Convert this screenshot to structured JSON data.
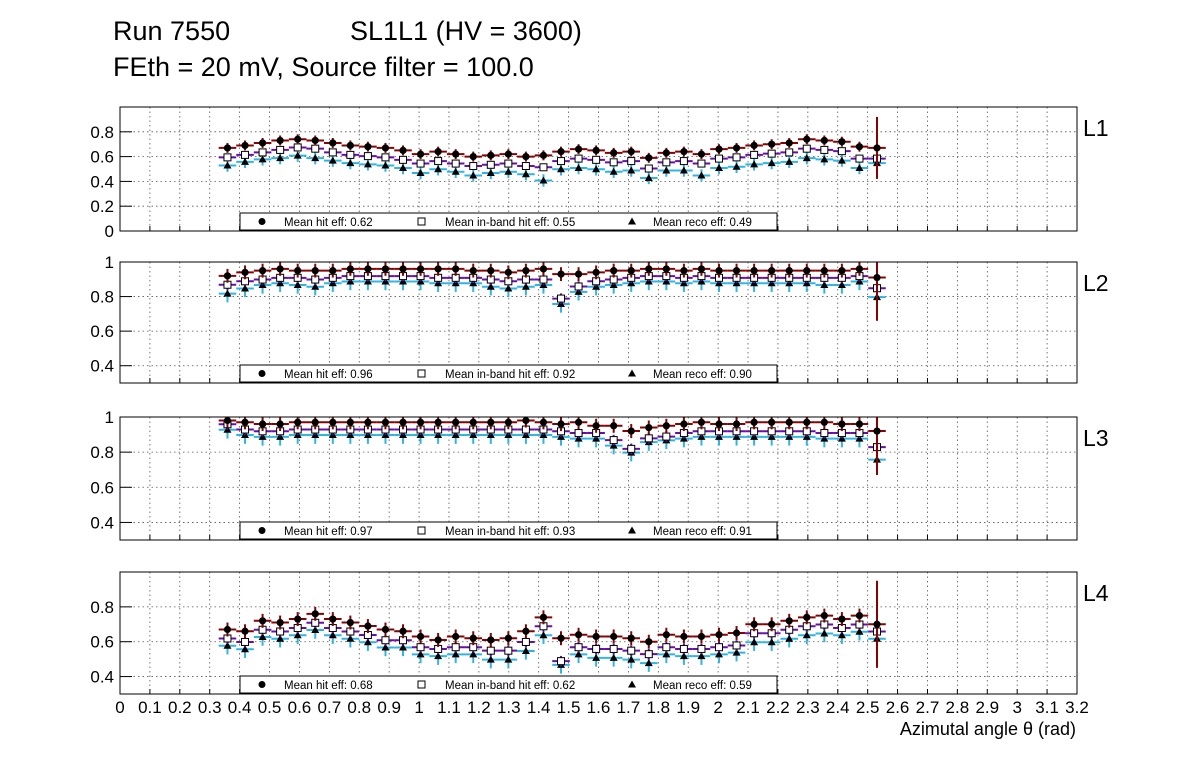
{
  "header": {
    "run": "Run 7550",
    "chamber": "SL1L1 (HV = 3600)",
    "settings": "FEth = 20 mV, Source filter = 100.0"
  },
  "colors": {
    "hit": "#8b0000",
    "inband": "#6a0dad",
    "reco": "#2bb6e6",
    "grid": "#555555"
  },
  "chart_data": {
    "type": "scatter",
    "xlabel": "Azimutal angle θ (rad)",
    "xlim": [
      0,
      3.2
    ],
    "x_ticks": [
      0,
      0.1,
      0.2,
      0.3,
      0.4,
      0.5,
      0.6,
      0.7,
      0.8,
      0.9,
      1,
      1.1,
      1.2,
      1.3,
      1.4,
      1.5,
      1.6,
      1.7,
      1.8,
      1.9,
      2,
      2.1,
      2.2,
      2.3,
      2.4,
      2.5,
      2.6,
      2.7,
      2.8,
      2.9,
      3,
      3.1,
      3.2
    ],
    "x_tick_labels": [
      "0",
      "0.1",
      "0.2",
      "0.3",
      "0.4",
      "0.5",
      "0.6",
      "0.7",
      "0.8",
      "0.9",
      "1",
      "1.1",
      "1.2",
      "1.3",
      "1.4",
      "1.5",
      "1.6",
      "1.7",
      "1.8",
      "1.9",
      "2",
      "2.1",
      "2.2",
      "2.3",
      "2.4",
      "2.5",
      "2.6",
      "2.7",
      "2.8",
      "2.9",
      "3",
      "3.1",
      "3.2"
    ],
    "x_bin_start": 0.33,
    "x_bin_width": 0.0587,
    "legend_labels": {
      "hit": "Mean hit  eff:",
      "inband": "Mean in-band hit eff:",
      "reco": "Mean reco eff:"
    },
    "panels": [
      {
        "name": "L1",
        "ylim": [
          0,
          1.0
        ],
        "y_ticks": [
          0,
          0.2,
          0.4,
          0.6,
          0.8
        ],
        "y_tick_labels": [
          "0",
          "0.2",
          "0.4",
          "0.6",
          "0.8"
        ],
        "means": {
          "hit": "0.62",
          "inband": "0.55",
          "reco": "0.49"
        },
        "series": [
          {
            "name": "Mean hit eff",
            "values": [
              0.67,
              0.69,
              0.71,
              0.73,
              0.74,
              0.73,
              0.71,
              0.69,
              0.68,
              0.67,
              0.65,
              0.62,
              0.64,
              0.62,
              0.6,
              0.61,
              0.62,
              0.6,
              0.61,
              0.64,
              0.66,
              0.65,
              0.63,
              0.64,
              0.59,
              0.63,
              0.64,
              0.62,
              0.66,
              0.67,
              0.69,
              0.7,
              0.71,
              0.74,
              0.73,
              0.72,
              0.68,
              0.67
            ]
          },
          {
            "name": "Mean in-band hit eff",
            "values": [
              0.61,
              0.63,
              0.65,
              0.67,
              0.69,
              0.68,
              0.65,
              0.63,
              0.62,
              0.61,
              0.59,
              0.56,
              0.58,
              0.56,
              0.54,
              0.55,
              0.56,
              0.54,
              0.53,
              0.58,
              0.6,
              0.59,
              0.57,
              0.58,
              0.52,
              0.57,
              0.58,
              0.56,
              0.6,
              0.61,
              0.63,
              0.64,
              0.65,
              0.68,
              0.67,
              0.66,
              0.6,
              0.6
            ]
          },
          {
            "name": "Mean reco eff",
            "values": [
              0.56,
              0.59,
              0.61,
              0.62,
              0.64,
              0.62,
              0.6,
              0.58,
              0.57,
              0.56,
              0.54,
              0.5,
              0.53,
              0.51,
              0.48,
              0.5,
              0.51,
              0.49,
              0.44,
              0.53,
              0.54,
              0.53,
              0.51,
              0.52,
              0.46,
              0.52,
              0.52,
              0.48,
              0.54,
              0.55,
              0.57,
              0.58,
              0.59,
              0.62,
              0.61,
              0.6,
              0.54,
              0.58
            ]
          }
        ]
      },
      {
        "name": "L2",
        "ylim": [
          0.3,
          1.0
        ],
        "y_ticks": [
          0.4,
          0.6,
          0.8,
          1.0
        ],
        "y_tick_labels": [
          "0.4",
          "0.6",
          "0.8",
          "1"
        ],
        "means": {
          "hit": "0.96",
          "inband": "0.92",
          "reco": "0.90"
        },
        "series": [
          {
            "name": "Mean hit eff",
            "values": [
              0.92,
              0.94,
              0.95,
              0.96,
              0.95,
              0.95,
              0.95,
              0.96,
              0.96,
              0.96,
              0.96,
              0.96,
              0.96,
              0.96,
              0.95,
              0.95,
              0.94,
              0.95,
              0.96,
              0.93,
              0.93,
              0.94,
              0.95,
              0.95,
              0.96,
              0.96,
              0.95,
              0.96,
              0.95,
              0.95,
              0.95,
              0.95,
              0.95,
              0.95,
              0.95,
              0.95,
              0.96,
              0.91
            ]
          },
          {
            "name": "Mean in-band hit eff",
            "values": [
              0.88,
              0.9,
              0.91,
              0.92,
              0.92,
              0.91,
              0.92,
              0.93,
              0.93,
              0.93,
              0.93,
              0.93,
              0.92,
              0.92,
              0.92,
              0.91,
              0.9,
              0.91,
              0.91,
              0.8,
              0.87,
              0.9,
              0.91,
              0.92,
              0.93,
              0.93,
              0.92,
              0.93,
              0.92,
              0.92,
              0.92,
              0.92,
              0.92,
              0.92,
              0.92,
              0.92,
              0.93,
              0.86
            ]
          },
          {
            "name": "Mean reco eff",
            "values": [
              0.84,
              0.87,
              0.89,
              0.9,
              0.89,
              0.88,
              0.9,
              0.91,
              0.91,
              0.91,
              0.91,
              0.91,
              0.9,
              0.9,
              0.9,
              0.88,
              0.87,
              0.88,
              0.89,
              0.78,
              0.85,
              0.88,
              0.89,
              0.9,
              0.91,
              0.91,
              0.9,
              0.91,
              0.9,
              0.9,
              0.9,
              0.9,
              0.9,
              0.9,
              0.89,
              0.89,
              0.91,
              0.82
            ]
          }
        ]
      },
      {
        "name": "L3",
        "ylim": [
          0.3,
          1.0
        ],
        "y_ticks": [
          0.4,
          0.6,
          0.8,
          1.0
        ],
        "y_tick_labels": [
          "0.4",
          "0.6",
          "0.8",
          "1"
        ],
        "means": {
          "hit": "0.97",
          "inband": "0.93",
          "reco": "0.91"
        },
        "series": [
          {
            "name": "Mean hit eff",
            "values": [
              0.98,
              0.97,
              0.96,
              0.96,
              0.97,
              0.97,
              0.97,
              0.97,
              0.97,
              0.97,
              0.97,
              0.97,
              0.97,
              0.97,
              0.97,
              0.97,
              0.97,
              0.98,
              0.97,
              0.96,
              0.97,
              0.95,
              0.95,
              0.92,
              0.94,
              0.95,
              0.96,
              0.97,
              0.96,
              0.96,
              0.97,
              0.97,
              0.97,
              0.97,
              0.97,
              0.96,
              0.96,
              0.92
            ]
          },
          {
            "name": "Mean in-band hit eff",
            "values": [
              0.97,
              0.94,
              0.93,
              0.93,
              0.94,
              0.94,
              0.94,
              0.94,
              0.94,
              0.94,
              0.94,
              0.94,
              0.94,
              0.94,
              0.94,
              0.94,
              0.94,
              0.94,
              0.94,
              0.93,
              0.92,
              0.92,
              0.88,
              0.83,
              0.89,
              0.9,
              0.92,
              0.93,
              0.93,
              0.93,
              0.93,
              0.93,
              0.93,
              0.93,
              0.92,
              0.92,
              0.92,
              0.84
            ]
          },
          {
            "name": "Mean reco eff",
            "values": [
              0.95,
              0.92,
              0.91,
              0.91,
              0.92,
              0.92,
              0.92,
              0.92,
              0.92,
              0.92,
              0.92,
              0.92,
              0.92,
              0.92,
              0.92,
              0.92,
              0.92,
              0.92,
              0.92,
              0.91,
              0.9,
              0.9,
              0.86,
              0.82,
              0.88,
              0.89,
              0.9,
              0.91,
              0.91,
              0.91,
              0.91,
              0.91,
              0.91,
              0.91,
              0.9,
              0.9,
              0.9,
              0.78
            ]
          }
        ]
      },
      {
        "name": "L4",
        "ylim": [
          0.3,
          1.0
        ],
        "y_ticks": [
          0.4,
          0.6,
          0.8
        ],
        "y_tick_labels": [
          "0.4",
          "0.6",
          "0.8"
        ],
        "means": {
          "hit": "0.68",
          "inband": "0.62",
          "reco": "0.59"
        },
        "series": [
          {
            "name": "Mean hit eff",
            "values": [
              0.67,
              0.66,
              0.72,
              0.71,
              0.73,
              0.76,
              0.73,
              0.71,
              0.69,
              0.67,
              0.66,
              0.63,
              0.61,
              0.63,
              0.62,
              0.61,
              0.62,
              0.66,
              0.74,
              0.62,
              0.64,
              0.63,
              0.63,
              0.62,
              0.6,
              0.64,
              0.63,
              0.63,
              0.64,
              0.65,
              0.7,
              0.7,
              0.72,
              0.74,
              0.75,
              0.73,
              0.75,
              0.7
            ]
          },
          {
            "name": "Mean in-band hit eff",
            "values": [
              0.63,
              0.61,
              0.68,
              0.67,
              0.69,
              0.72,
              0.69,
              0.67,
              0.65,
              0.62,
              0.62,
              0.58,
              0.57,
              0.58,
              0.58,
              0.56,
              0.56,
              0.61,
              0.7,
              0.5,
              0.58,
              0.57,
              0.57,
              0.56,
              0.54,
              0.58,
              0.57,
              0.57,
              0.58,
              0.59,
              0.66,
              0.66,
              0.68,
              0.7,
              0.71,
              0.69,
              0.71,
              0.67
            ]
          },
          {
            "name": "Mean reco eff",
            "values": [
              0.6,
              0.58,
              0.65,
              0.64,
              0.66,
              0.69,
              0.66,
              0.64,
              0.62,
              0.59,
              0.59,
              0.55,
              0.54,
              0.55,
              0.55,
              0.52,
              0.52,
              0.57,
              0.66,
              0.49,
              0.55,
              0.53,
              0.53,
              0.52,
              0.5,
              0.55,
              0.54,
              0.54,
              0.55,
              0.56,
              0.62,
              0.62,
              0.64,
              0.66,
              0.67,
              0.66,
              0.68,
              0.64
            ]
          }
        ]
      }
    ]
  }
}
